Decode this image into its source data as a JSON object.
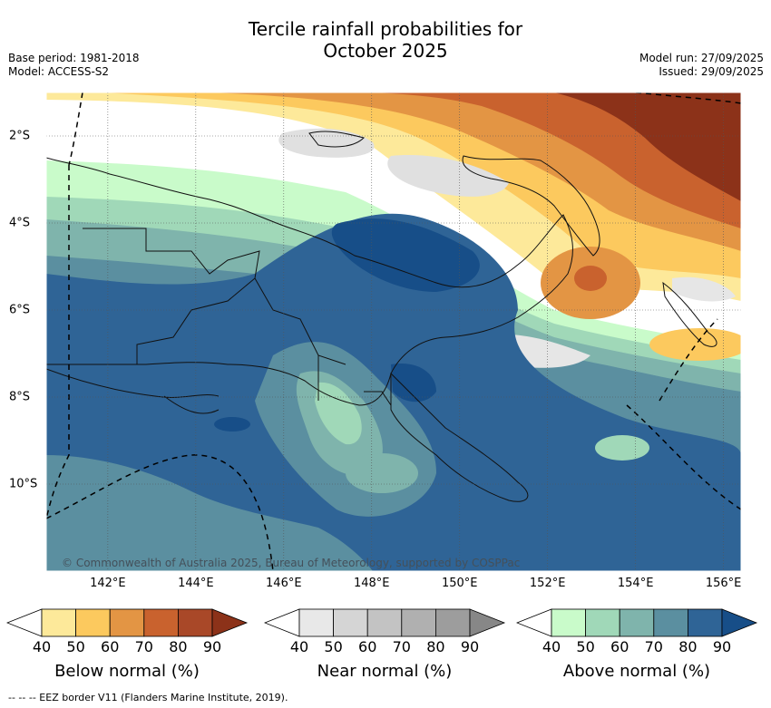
{
  "title_line1": "Tercile rainfall probabilities for",
  "title_line2": "October 2025",
  "base_period": "Base period: 1981-2018",
  "model": "Model: ACCESS-S2",
  "model_run": "Model run: 27/09/2025",
  "issued": "Issued: 29/09/2025",
  "credit": "© Commonwealth of Australia 2025, Bureau of Meteorology, supported by COSPPac",
  "footnote": "--  --  -- EEZ border V11 (Flanders Marine Institute, 2019).",
  "chart_data": {
    "type": "map",
    "x_ticks": [
      {
        "label": "142°E",
        "lon": 142
      },
      {
        "label": "144°E",
        "lon": 144
      },
      {
        "label": "146°E",
        "lon": 146
      },
      {
        "label": "148°E",
        "lon": 148
      },
      {
        "label": "150°E",
        "lon": 150
      },
      {
        "label": "152°E",
        "lon": 152
      },
      {
        "label": "154°E",
        "lon": 154
      },
      {
        "label": "156°E",
        "lon": 156
      }
    ],
    "y_ticks": [
      {
        "label": "2°S",
        "lat": -2
      },
      {
        "label": "4°S",
        "lat": -4
      },
      {
        "label": "6°S",
        "lat": -6
      },
      {
        "label": "8°S",
        "lat": -8
      },
      {
        "label": "10°S",
        "lat": -10
      }
    ],
    "lon_range": [
      140.6,
      156.4
    ],
    "lat_range": [
      -12.0,
      -1.0
    ],
    "colorbars": [
      {
        "title": "Below normal (%)",
        "levels": [
          "40",
          "50",
          "60",
          "70",
          "80",
          "90"
        ],
        "colors": [
          "#ffffff",
          "#fde99a",
          "#fcc95e",
          "#e39544",
          "#c9622e",
          "#a94828",
          "#8c3219"
        ]
      },
      {
        "title": "Near normal (%)",
        "levels": [
          "40",
          "50",
          "60",
          "70",
          "80",
          "90"
        ],
        "colors": [
          "#ffffff",
          "#e8e8e8",
          "#d5d5d5",
          "#c3c3c3",
          "#b0b0b0",
          "#9d9d9d",
          "#878787"
        ]
      },
      {
        "title": "Above normal (%)",
        "levels": [
          "40",
          "50",
          "60",
          "70",
          "80",
          "90"
        ],
        "colors": [
          "#ffffff",
          "#c9fbca",
          "#a0d8b8",
          "#7fb4ac",
          "#5b8fa0",
          "#2f6496",
          "#174e88"
        ]
      }
    ]
  }
}
